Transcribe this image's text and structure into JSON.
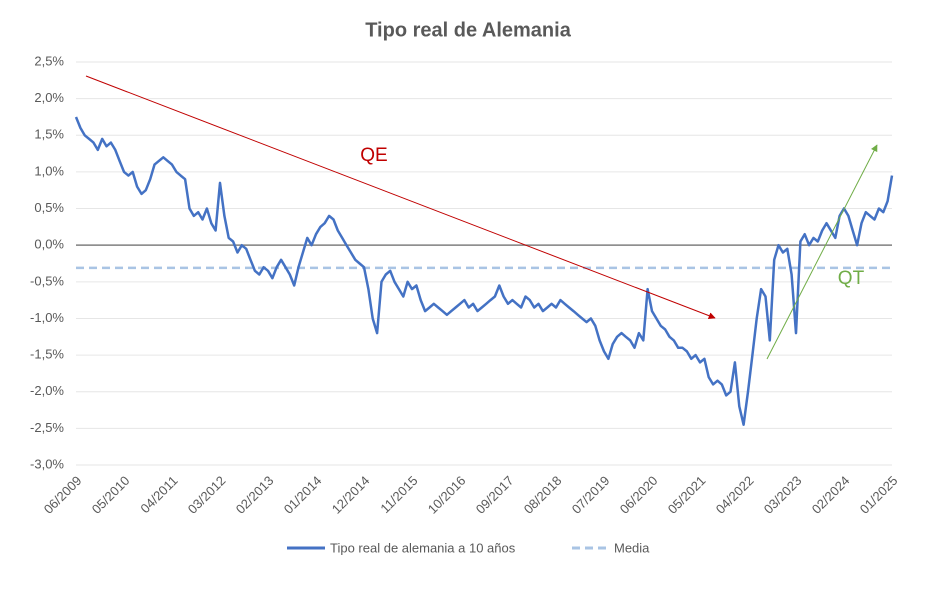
{
  "chart_data": {
    "type": "line",
    "title": "Tipo real de Alemania",
    "categories": [
      "06/2009",
      null,
      null,
      null,
      null,
      null,
      null,
      null,
      null,
      null,
      null,
      "05/2010",
      null,
      null,
      null,
      null,
      null,
      null,
      null,
      null,
      null,
      null,
      "04/2011",
      null,
      null,
      null,
      null,
      null,
      null,
      null,
      null,
      null,
      null,
      "03/2012",
      null,
      null,
      null,
      null,
      null,
      null,
      null,
      null,
      null,
      null,
      "02/2013",
      null,
      null,
      null,
      null,
      null,
      null,
      null,
      null,
      null,
      null,
      "01/2014",
      null,
      null,
      null,
      null,
      null,
      null,
      null,
      null,
      null,
      null,
      "12/2014",
      null,
      null,
      null,
      null,
      null,
      null,
      null,
      null,
      null,
      null,
      "11/2015",
      null,
      null,
      null,
      null,
      null,
      null,
      null,
      null,
      null,
      null,
      "10/2016",
      null,
      null,
      null,
      null,
      null,
      null,
      null,
      null,
      null,
      null,
      "09/2017",
      null,
      null,
      null,
      null,
      null,
      null,
      null,
      null,
      null,
      null,
      "08/2018",
      null,
      null,
      null,
      null,
      null,
      null,
      null,
      null,
      null,
      null,
      "07/2019",
      null,
      null,
      null,
      null,
      null,
      null,
      null,
      null,
      null,
      null,
      "06/2020",
      null,
      null,
      null,
      null,
      null,
      null,
      null,
      null,
      null,
      null,
      "05/2021",
      null,
      null,
      null,
      null,
      null,
      null,
      null,
      null,
      null,
      null,
      "04/2022",
      null,
      null,
      null,
      null,
      null,
      null,
      null,
      null,
      null,
      null,
      "03/2023",
      null,
      null,
      null,
      null,
      null,
      null,
      null,
      null,
      null,
      null,
      "02/2024",
      null,
      null,
      null,
      null,
      null,
      null,
      null,
      null,
      null,
      null,
      "01/2025"
    ],
    "series": [
      {
        "name": "Tipo real de alemania a 10 años",
        "color": "#4472c4",
        "values": [
          1.75,
          1.6,
          1.5,
          1.45,
          1.4,
          1.3,
          1.45,
          1.35,
          1.4,
          1.3,
          1.15,
          1.0,
          0.95,
          1.0,
          0.8,
          0.7,
          0.75,
          0.9,
          1.1,
          1.15,
          1.2,
          1.15,
          1.1,
          1.0,
          0.95,
          0.9,
          0.5,
          0.4,
          0.45,
          0.35,
          0.5,
          0.3,
          0.2,
          0.85,
          0.4,
          0.1,
          0.05,
          -0.1,
          0.0,
          -0.05,
          -0.2,
          -0.35,
          -0.4,
          -0.3,
          -0.35,
          -0.45,
          -0.3,
          -0.2,
          -0.3,
          -0.4,
          -0.55,
          -0.3,
          -0.1,
          0.1,
          0.0,
          0.15,
          0.25,
          0.3,
          0.4,
          0.35,
          0.2,
          0.1,
          0.0,
          -0.1,
          -0.2,
          -0.25,
          -0.3,
          -0.6,
          -1.0,
          -1.2,
          -0.5,
          -0.4,
          -0.35,
          -0.5,
          -0.6,
          -0.7,
          -0.5,
          -0.6,
          -0.55,
          -0.75,
          -0.9,
          -0.85,
          -0.8,
          -0.85,
          -0.9,
          -0.95,
          -0.9,
          -0.85,
          -0.8,
          -0.75,
          -0.85,
          -0.8,
          -0.9,
          -0.85,
          -0.8,
          -0.75,
          -0.7,
          -0.55,
          -0.7,
          -0.8,
          -0.75,
          -0.8,
          -0.85,
          -0.7,
          -0.75,
          -0.85,
          -0.8,
          -0.9,
          -0.85,
          -0.8,
          -0.85,
          -0.75,
          -0.8,
          -0.85,
          -0.9,
          -0.95,
          -1.0,
          -1.05,
          -1.0,
          -1.1,
          -1.3,
          -1.45,
          -1.55,
          -1.35,
          -1.25,
          -1.2,
          -1.25,
          -1.3,
          -1.4,
          -1.2,
          -1.3,
          -0.6,
          -0.9,
          -1.0,
          -1.1,
          -1.15,
          -1.25,
          -1.3,
          -1.4,
          -1.4,
          -1.45,
          -1.55,
          -1.5,
          -1.6,
          -1.55,
          -1.8,
          -1.9,
          -1.85,
          -1.9,
          -2.05,
          -2.0,
          -1.6,
          -2.2,
          -2.45,
          -2.0,
          -1.5,
          -1.0,
          -0.6,
          -0.7,
          -1.3,
          -0.2,
          0.0,
          -0.1,
          -0.05,
          -0.4,
          -1.2,
          0.05,
          0.15,
          0.0,
          0.1,
          0.05,
          0.2,
          0.3,
          0.2,
          0.1,
          0.4,
          0.5,
          0.4,
          0.2,
          0.0,
          0.3,
          0.45,
          0.4,
          0.35,
          0.5,
          0.45,
          0.6,
          0.95
        ]
      }
    ],
    "reference_lines": [
      {
        "name": "Media",
        "value": -0.31,
        "color": "#a9c4e4",
        "dashed": true
      }
    ],
    "annotations": [
      {
        "text": "QE",
        "color": "#c00000"
      },
      {
        "text": "QT",
        "color": "#70ad47"
      }
    ],
    "ylim": [
      -3,
      2.5
    ],
    "yticks": [
      {
        "value": -3,
        "label": "-3,0%"
      },
      {
        "value": -2.5,
        "label": "-2,5%"
      },
      {
        "value": -2,
        "label": "-2,0%"
      },
      {
        "value": -1.5,
        "label": "-1,5%"
      },
      {
        "value": -1,
        "label": "-1,0%"
      },
      {
        "value": -0.5,
        "label": "-0,5%"
      },
      {
        "value": 0,
        "label": "0,0%"
      },
      {
        "value": 0.5,
        "label": "0,5%"
      },
      {
        "value": 1,
        "label": "1,0%"
      },
      {
        "value": 1.5,
        "label": "1,5%"
      },
      {
        "value": 2,
        "label": "2,0%"
      },
      {
        "value": 2.5,
        "label": "2,5%"
      }
    ],
    "grid": true
  }
}
